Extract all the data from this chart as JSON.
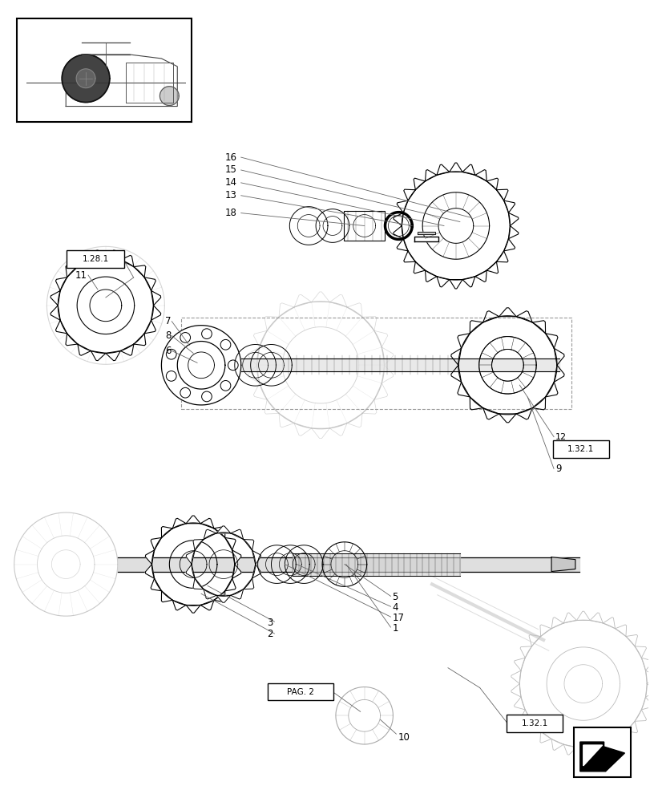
{
  "bg_color": "#ffffff",
  "line_color": "#000000",
  "light_gray": "#aaaaaa",
  "mid_gray": "#888888",
  "fig_width": 8.12,
  "fig_height": 10.0,
  "dpi": 100
}
